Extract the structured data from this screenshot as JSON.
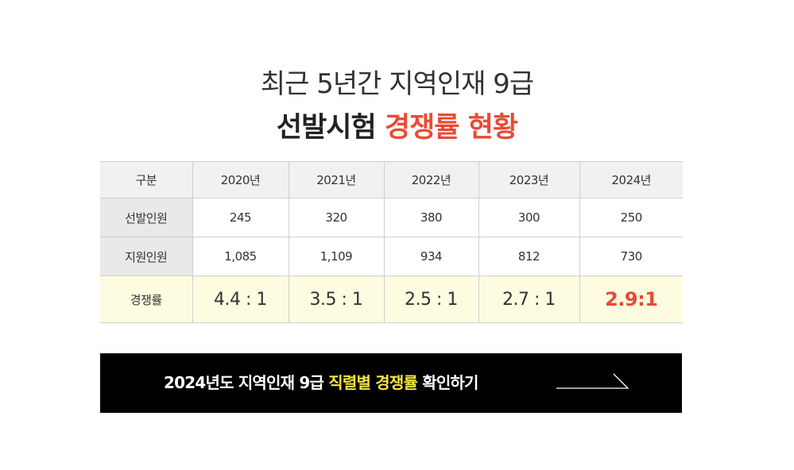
{
  "title": {
    "line1": "최근 5년간 지역인재 9급",
    "line2_plain": "선발시험",
    "line2_accent": "경쟁률 현황"
  },
  "table": {
    "headers": [
      "구분",
      "2020년",
      "2021년",
      "2022년",
      "2023년",
      "2024년"
    ],
    "rows": [
      {
        "label": "선발인원",
        "values": [
          "245",
          "320",
          "380",
          "300",
          "250"
        ]
      },
      {
        "label": "지원인원",
        "values": [
          "1,085",
          "1,109",
          "934",
          "812",
          "730"
        ]
      },
      {
        "label": "경쟁률",
        "values": [
          "4.4 : 1",
          "3.5 : 1",
          "2.5 : 1",
          "2.7 : 1",
          "2.9:1"
        ]
      }
    ]
  },
  "cta": {
    "prefix": "2024년도 지역인재 9급",
    "highlight": "직렬별 경쟁률",
    "suffix": "확인하기",
    "icon": "arrow-right-icon"
  },
  "colors": {
    "accent": "#e94a35",
    "cta_highlight": "#f5e642",
    "rate_row_bg": "#fdfce0"
  }
}
